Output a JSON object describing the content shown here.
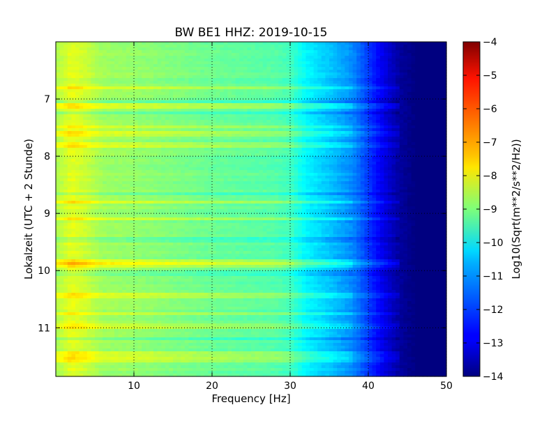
{
  "chart_data": {
    "type": "heatmap",
    "title": "BW BE1 HHZ: 2019-10-15",
    "xlabel": "Frequency [Hz]",
    "ylabel": "Lokalzeit (UTC + 2 Stunde)",
    "xlim": [
      0,
      50
    ],
    "ylim": [
      6.0,
      11.85
    ],
    "y_inverted": true,
    "x_ticks": [
      10,
      20,
      30,
      40,
      50
    ],
    "y_ticks": [
      7,
      8,
      9,
      10,
      11
    ],
    "grid": true,
    "colormap": "jet",
    "colorbar": {
      "label": "Log10(Sqrt(m**2/s**2/Hz))",
      "range": [
        -14,
        -4
      ],
      "ticks": [
        -4,
        -5,
        -6,
        -7,
        -8,
        -9,
        -10,
        -11,
        -12,
        -13,
        -14
      ]
    },
    "spectrum_profile": {
      "frequency_hz": [
        0,
        2,
        4,
        6,
        10,
        20,
        28,
        30,
        32,
        35,
        38,
        40,
        42,
        44,
        46,
        50
      ],
      "log10_amplitude": [
        -8.6,
        -8.0,
        -8.3,
        -8.7,
        -8.8,
        -9.2,
        -9.4,
        -9.6,
        -10.3,
        -10.8,
        -11.4,
        -12.2,
        -13.0,
        -13.7,
        -14.0,
        -14.0
      ]
    },
    "bright_bands_hours": [
      6.8,
      7.13,
      7.48,
      7.62,
      7.8,
      8.8,
      9.1,
      9.85,
      9.9,
      10.43,
      10.75,
      10.98,
      11.45,
      11.55
    ],
    "dark_bands_hours": [
      7.05,
      7.25,
      8.65,
      9.45,
      10.05,
      11.2
    ]
  }
}
